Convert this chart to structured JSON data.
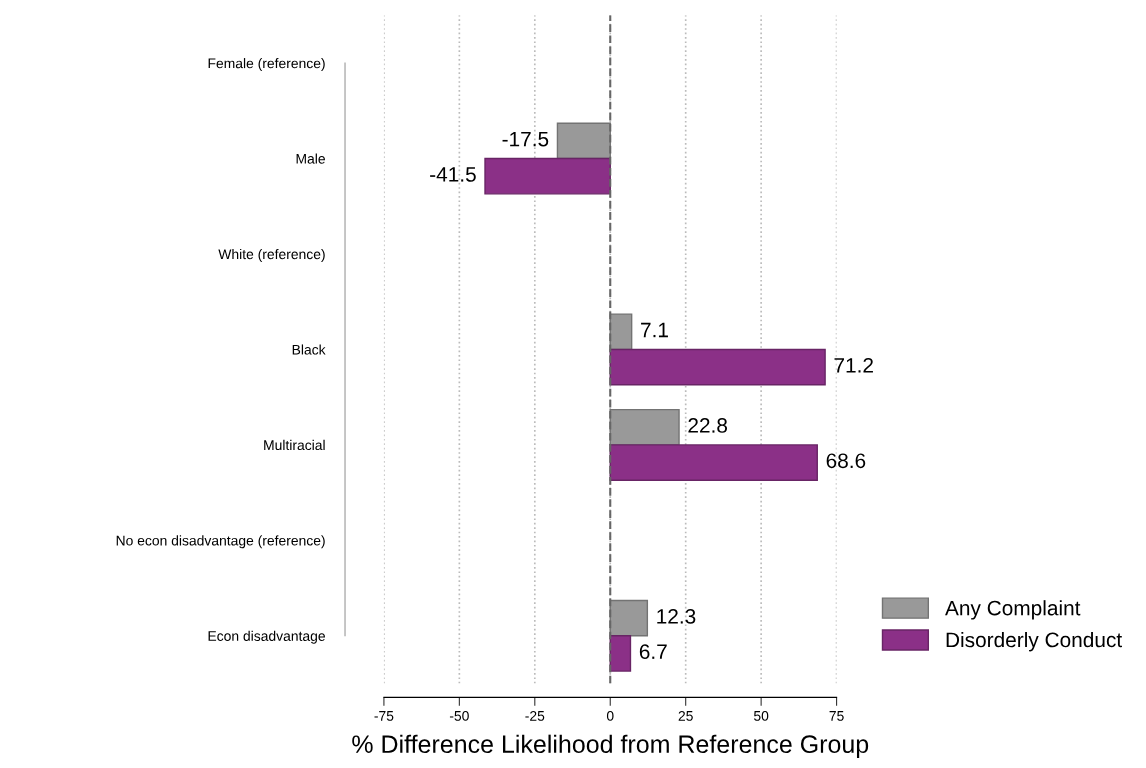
{
  "chart_data": {
    "type": "bar",
    "orientation": "horizontal",
    "categories": [
      "Female (reference)",
      "Male",
      "White (reference)",
      "Black",
      "Multiracial",
      "No econ disadvantage (reference)",
      "Econ disadvantage"
    ],
    "series": [
      {
        "name": "Any Complaint",
        "color": "#999999",
        "values": [
          null,
          -17.5,
          null,
          7.1,
          22.8,
          null,
          12.3
        ]
      },
      {
        "name": "Disorderly Conduct",
        "color": "#8b3087",
        "values": [
          null,
          -41.5,
          null,
          71.2,
          68.6,
          null,
          6.7
        ]
      }
    ],
    "xlabel": "% Difference Likelihood from Reference Group",
    "xlim": [
      -75,
      75
    ],
    "xticks": [
      -75,
      -50,
      -25,
      0,
      25,
      50,
      75
    ],
    "ref_lines": [
      {
        "axis": "x",
        "value": 0,
        "line_style": "dashed",
        "color": "#666666"
      }
    ],
    "grid": "x",
    "legend": "bottom right",
    "data_labels": true
  }
}
